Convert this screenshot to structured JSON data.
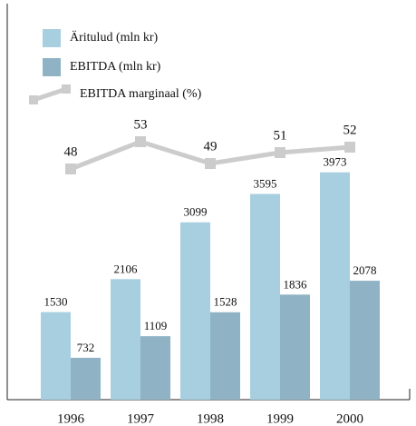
{
  "chart_data": {
    "type": "bar",
    "categories": [
      "1996",
      "1997",
      "1998",
      "1999",
      "2000"
    ],
    "series": [
      {
        "name": "Äritulud (mln kr)",
        "color": "#a8cfe0",
        "values": [
          1530,
          2106,
          3099,
          3595,
          3973
        ]
      },
      {
        "name": "EBITDA (mln kr)",
        "color": "#8fb3c4",
        "values": [
          732,
          1109,
          1528,
          1836,
          2078
        ]
      },
      {
        "name": "EBITDA marginaal (%)",
        "color": "#cccccc",
        "type": "line",
        "axis": "y2",
        "values": [
          48,
          53,
          49,
          51,
          52
        ]
      }
    ],
    "ylim": [
      0,
      4000
    ],
    "y2lim": [
      40,
      60
    ]
  }
}
